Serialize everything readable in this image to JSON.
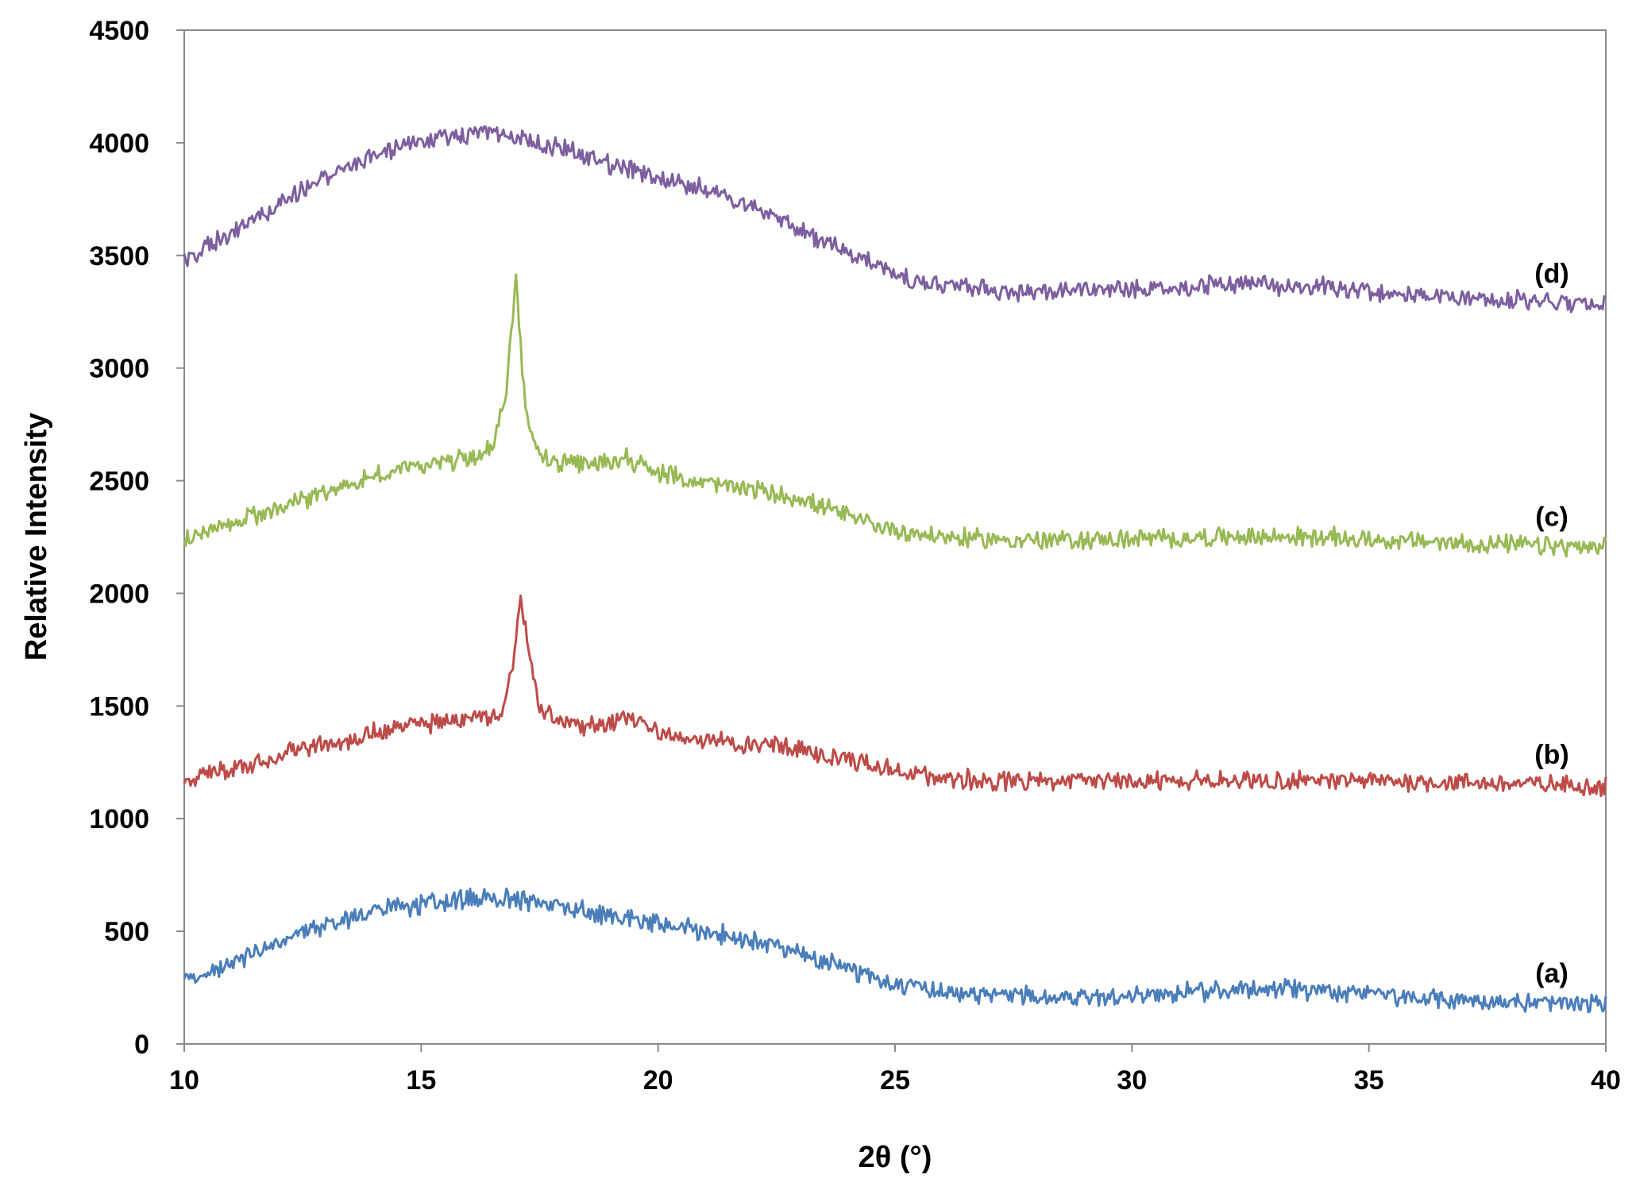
{
  "chart_data": {
    "type": "line",
    "title": "",
    "xlabel": "2θ (°)",
    "ylabel": "Relative Intensity",
    "xlim": [
      10,
      40
    ],
    "ylim": [
      0,
      4500
    ],
    "xticks": [
      10,
      15,
      20,
      25,
      30,
      35,
      40
    ],
    "yticks": [
      0,
      500,
      1000,
      1500,
      2000,
      2500,
      3000,
      3500,
      4000,
      4500
    ],
    "grid": false,
    "series": [
      {
        "name": "(a)",
        "color": "#4a7ebb",
        "x": [
          10,
          11,
          12,
          13,
          14,
          15,
          16,
          16.5,
          17,
          18,
          19,
          20,
          21,
          22,
          23,
          24,
          25,
          26,
          27,
          28,
          29,
          30,
          31,
          32,
          32.8,
          33.5,
          35,
          36,
          37,
          38,
          39,
          40
        ],
        "y": [
          270,
          360,
          450,
          530,
          590,
          620,
          640,
          650,
          640,
          610,
          570,
          530,
          500,
          460,
          400,
          330,
          270,
          240,
          220,
          210,
          210,
          215,
          225,
          240,
          255,
          240,
          220,
          200,
          195,
          185,
          180,
          175
        ]
      },
      {
        "name": "(b)",
        "color": "#be4b48",
        "x": [
          10,
          11,
          12,
          13,
          14,
          15,
          16,
          16.7,
          16.9,
          17.1,
          17.3,
          17.5,
          17.8,
          18,
          19,
          19.3,
          20,
          21,
          22,
          23,
          24,
          25,
          26,
          27,
          28,
          30,
          32,
          34,
          36,
          38,
          40
        ],
        "y": [
          1170,
          1220,
          1280,
          1330,
          1380,
          1420,
          1440,
          1470,
          1640,
          1990,
          1720,
          1490,
          1440,
          1420,
          1410,
          1450,
          1380,
          1350,
          1330,
          1310,
          1260,
          1210,
          1180,
          1170,
          1165,
          1165,
          1170,
          1170,
          1165,
          1155,
          1145
        ]
      },
      {
        "name": "(c)",
        "color": "#98b954",
        "x": [
          10,
          11,
          12,
          13,
          14,
          15,
          16,
          16.5,
          16.8,
          17,
          17.2,
          17.5,
          18,
          19,
          19.3,
          20,
          21,
          22,
          23,
          24,
          25,
          26,
          27,
          28,
          30,
          32,
          34,
          36,
          38,
          40
        ],
        "y": [
          2240,
          2310,
          2380,
          2450,
          2520,
          2570,
          2600,
          2640,
          2900,
          3400,
          2820,
          2610,
          2570,
          2580,
          2610,
          2530,
          2490,
          2460,
          2420,
          2340,
          2280,
          2250,
          2240,
          2235,
          2240,
          2250,
          2250,
          2230,
          2215,
          2200
        ]
      },
      {
        "name": "(d)",
        "color": "#7d5fa0",
        "x": [
          10,
          11,
          12,
          13,
          14,
          15,
          16,
          16.5,
          17,
          18,
          19,
          20,
          21,
          22,
          23,
          24,
          25,
          26,
          27,
          28,
          29,
          30,
          31,
          32,
          33,
          34,
          35,
          36,
          37,
          38,
          39,
          40
        ],
        "y": [
          3480,
          3600,
          3730,
          3850,
          3950,
          4010,
          4040,
          4050,
          4020,
          3970,
          3900,
          3850,
          3790,
          3710,
          3610,
          3510,
          3420,
          3370,
          3350,
          3340,
          3350,
          3350,
          3360,
          3370,
          3370,
          3360,
          3340,
          3320,
          3310,
          3300,
          3290,
          3280
        ]
      }
    ]
  }
}
